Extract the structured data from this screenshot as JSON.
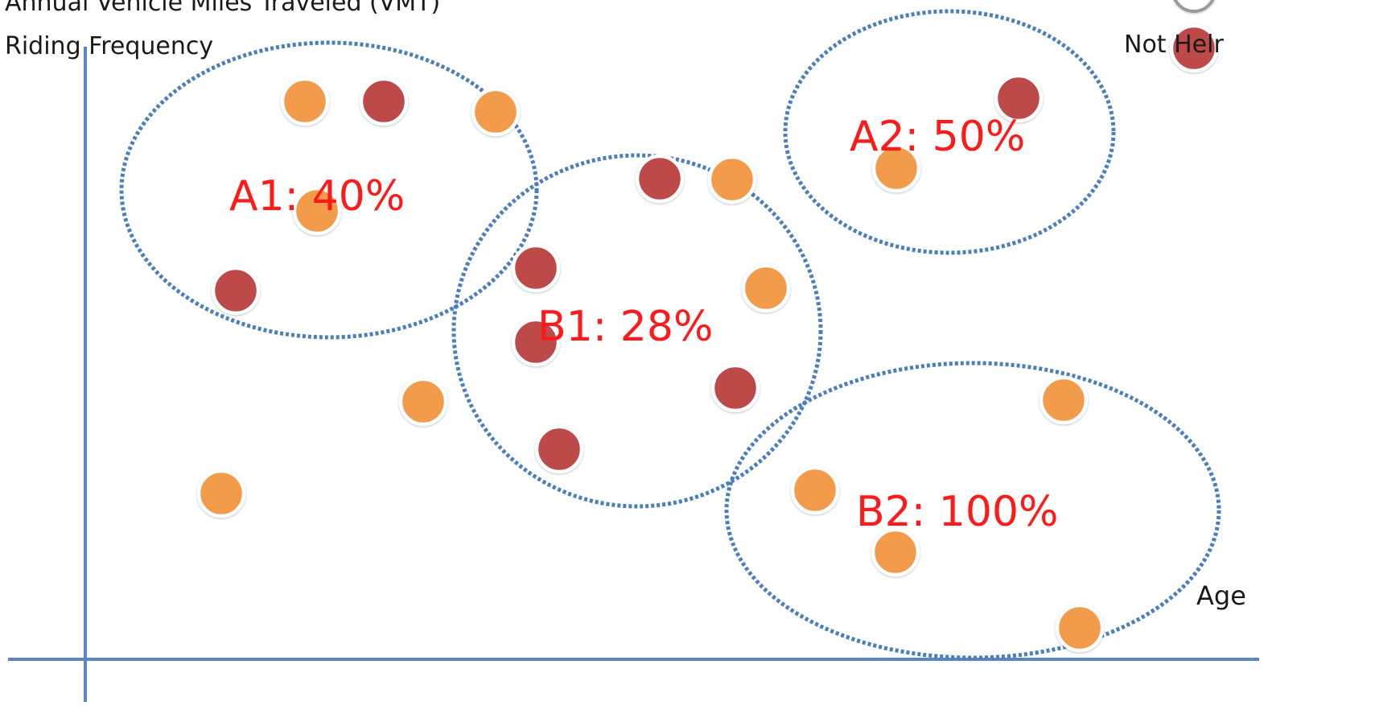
{
  "axes": {
    "y_title_line1": "Annual Vehicle Miles Traveled (VMT)",
    "y_title_line2": "Riding Frequency",
    "x_title": "Age",
    "axis_color": "#5b86c5"
  },
  "legend": {
    "not_helmeted_label": "Not Helr",
    "colors": {
      "helmeted": "#f29b4b",
      "not_helmeted": "#bd4a4a"
    }
  },
  "clusters": [
    {
      "id": "a1",
      "label": "A1: 40%"
    },
    {
      "id": "a2",
      "label": "A2: 50%"
    },
    {
      "id": "b1",
      "label": "B1: 28%"
    },
    {
      "id": "b2",
      "label": "B2: 100%"
    }
  ],
  "style": {
    "cluster_label_color": "#ff1a1a",
    "cluster_outline_color": "#4a7ec0"
  }
}
